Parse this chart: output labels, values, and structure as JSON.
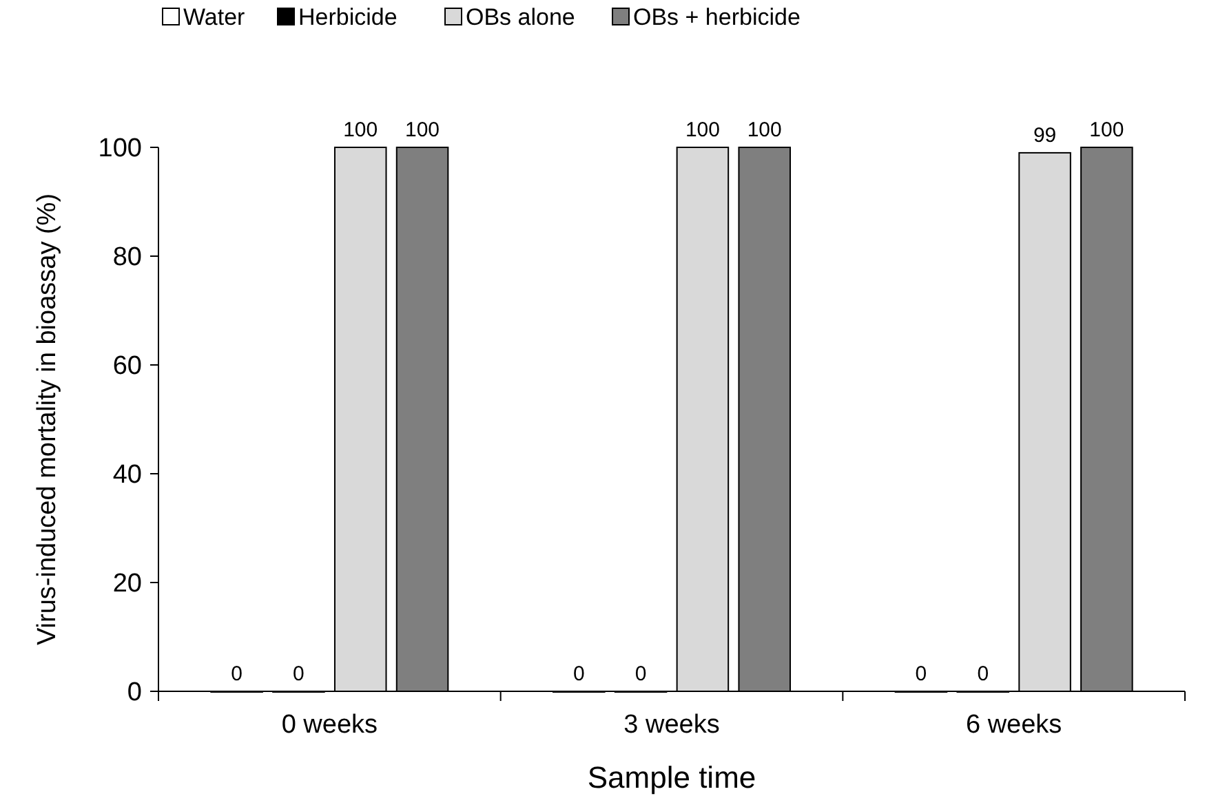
{
  "chart_data": {
    "type": "bar",
    "xlabel": "Sample time",
    "ylabel": "Virus-induced mortality in bioassay (%)",
    "categories": [
      "0 weeks",
      "3 weeks",
      "6 weeks"
    ],
    "series": [
      {
        "name": "Water",
        "color": "#ffffff",
        "values": [
          0,
          0,
          0
        ]
      },
      {
        "name": "Herbicide",
        "color": "#000000",
        "values": [
          0,
          0,
          0
        ]
      },
      {
        "name": "OBs alone",
        "color": "#d9d9d9",
        "values": [
          100,
          100,
          99
        ]
      },
      {
        "name": "OBs + herbicide",
        "color": "#7f7f7f",
        "values": [
          100,
          100,
          100
        ]
      }
    ],
    "ylim": [
      0,
      100
    ],
    "yticks": [
      0,
      20,
      40,
      60,
      80,
      100
    ],
    "grid": false,
    "legend": "top left",
    "data_labels": true
  }
}
